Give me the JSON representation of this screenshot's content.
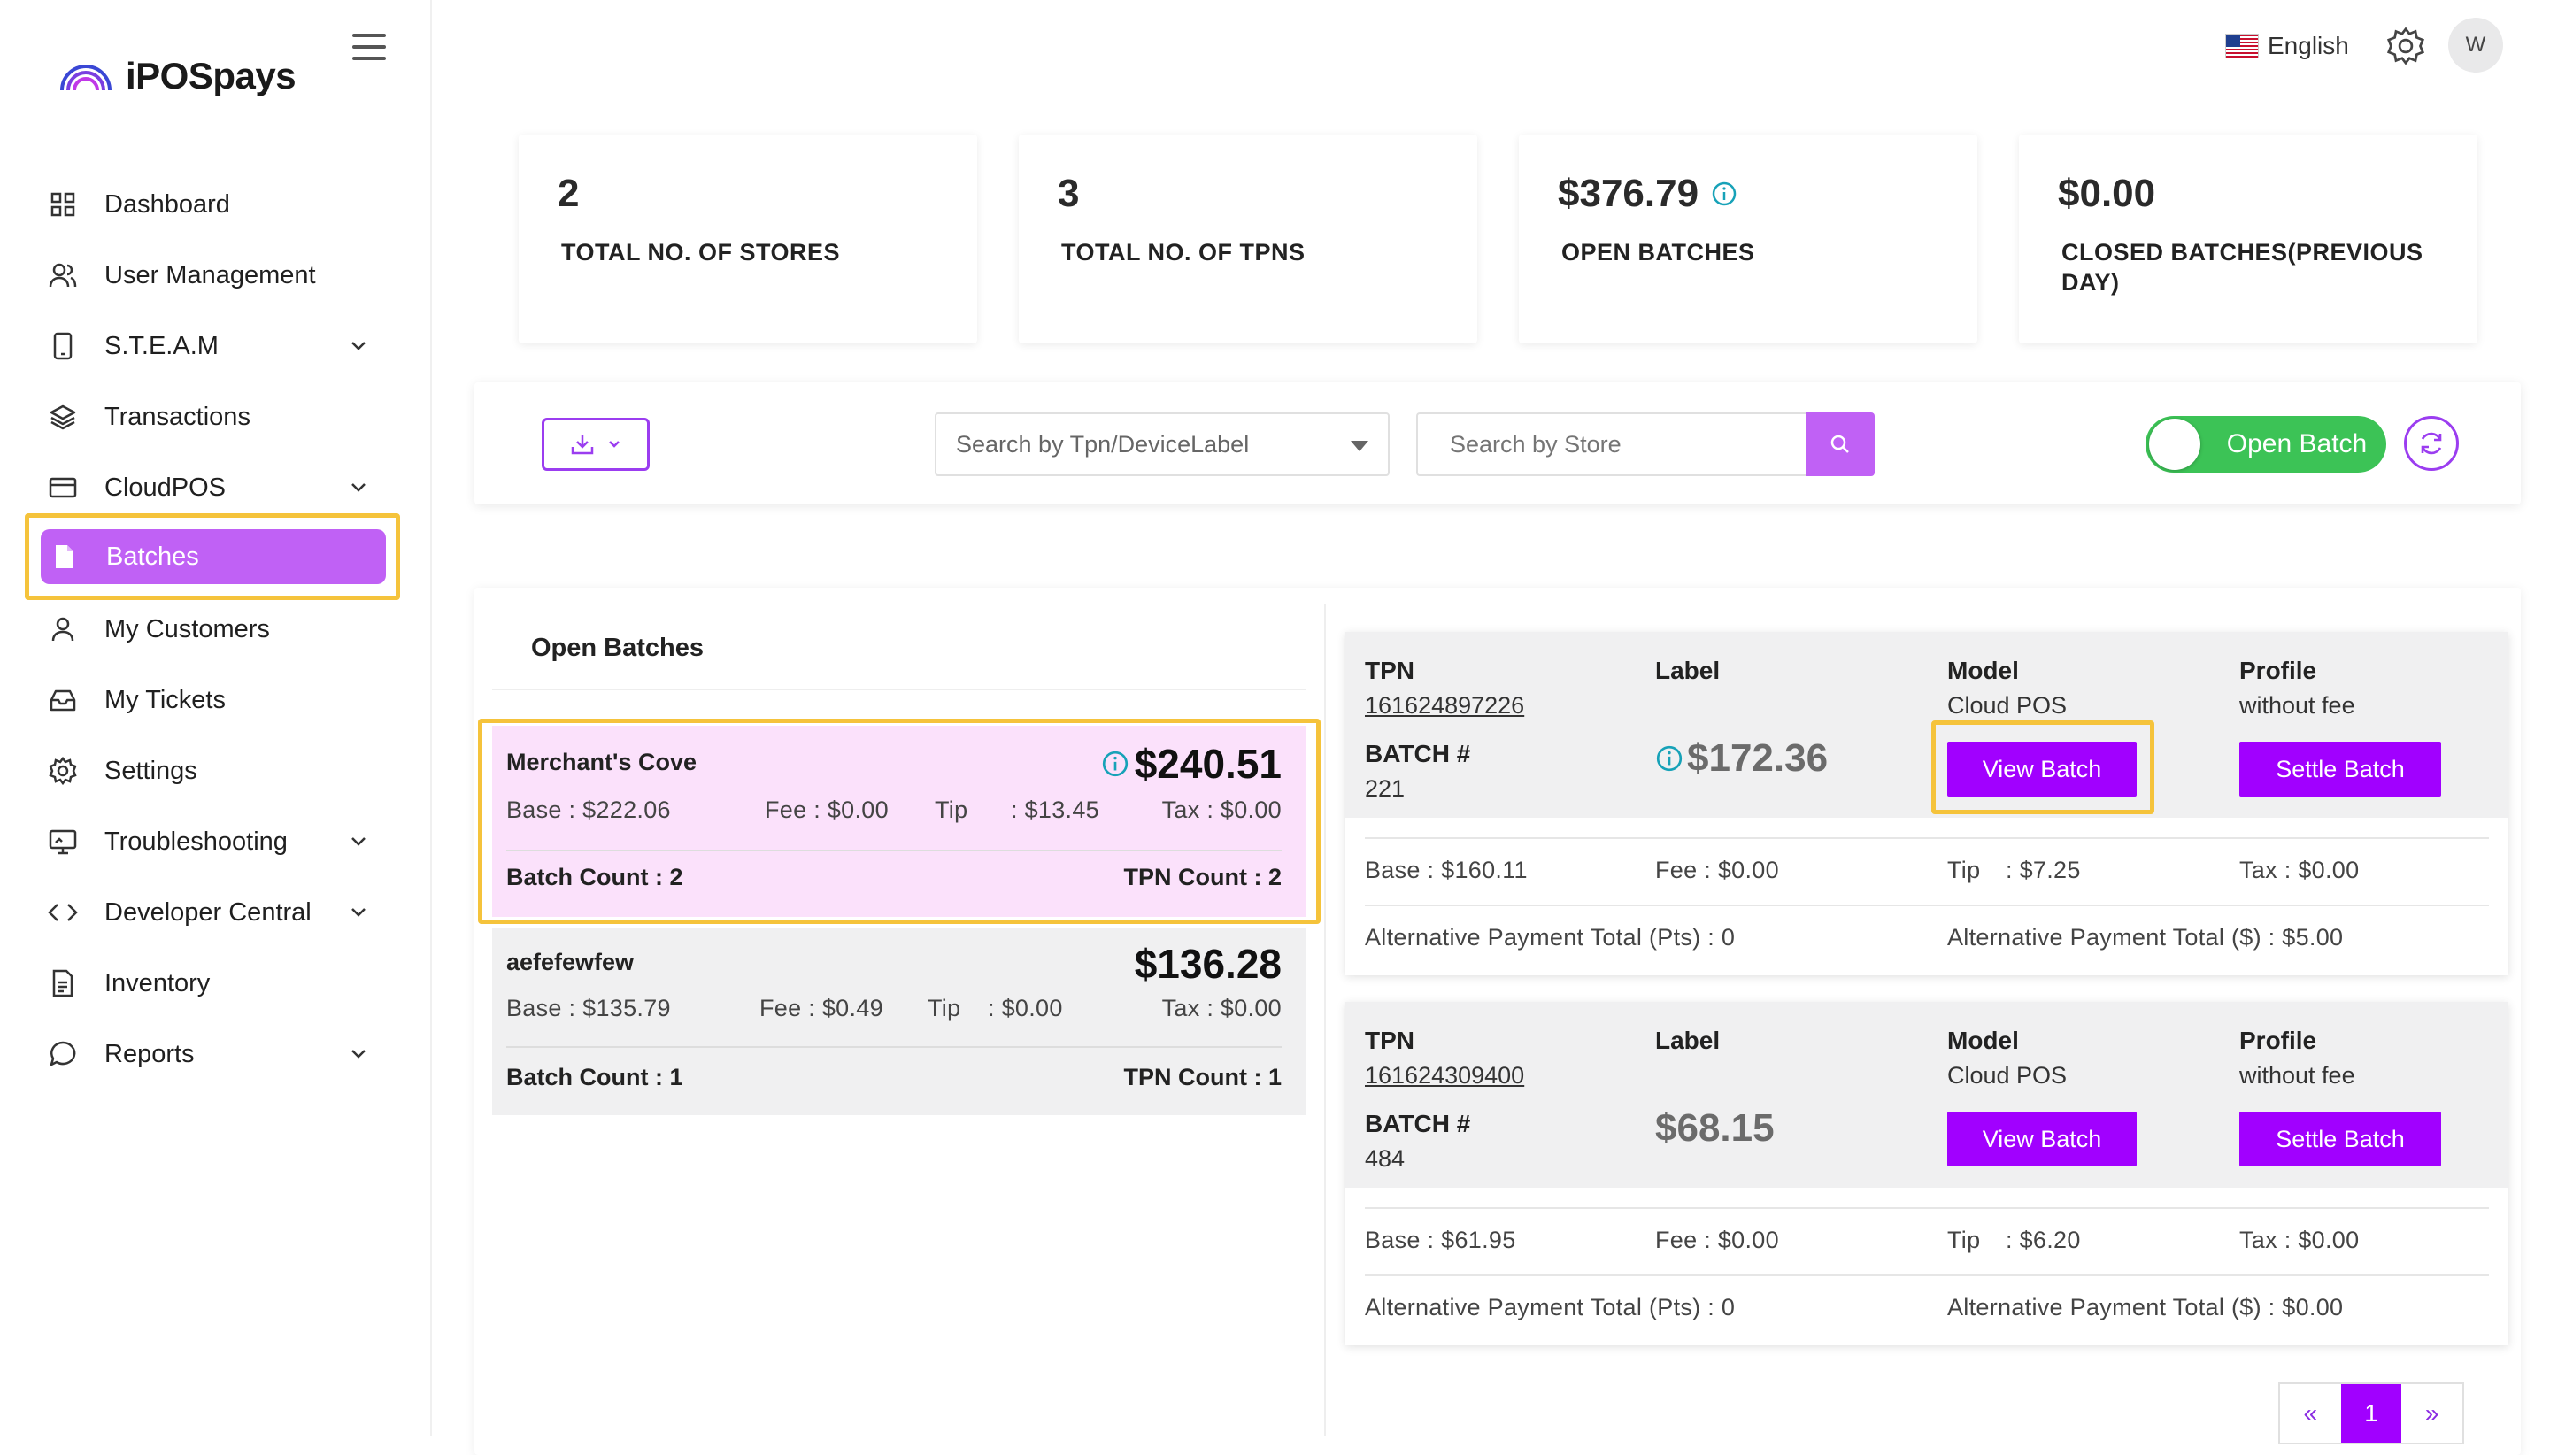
{
  "app": {
    "logo_text": "iPOSpays"
  },
  "topbar": {
    "language": "English",
    "avatar_initial": "W"
  },
  "sidebar": {
    "items": [
      {
        "label": "Dashboard",
        "icon": "grid-icon",
        "chevron": false
      },
      {
        "label": "User Management",
        "icon": "users-icon",
        "chevron": false
      },
      {
        "label": "S.T.E.A.M",
        "icon": "device-icon",
        "chevron": true
      },
      {
        "label": "Transactions",
        "icon": "layers-icon",
        "chevron": false
      },
      {
        "label": "CloudPOS",
        "icon": "card-icon",
        "chevron": true
      },
      {
        "label": "Batches",
        "icon": "file-icon",
        "chevron": false,
        "active": true
      },
      {
        "label": "My Customers",
        "icon": "user-icon",
        "chevron": false
      },
      {
        "label": "My Tickets",
        "icon": "inbox-icon",
        "chevron": false
      },
      {
        "label": "Settings",
        "icon": "gear-icon",
        "chevron": false
      },
      {
        "label": "Troubleshooting",
        "icon": "monitor-icon",
        "chevron": true
      },
      {
        "label": "Developer Central",
        "icon": "code-icon",
        "chevron": true
      },
      {
        "label": "Inventory",
        "icon": "document-icon",
        "chevron": false
      },
      {
        "label": "Reports",
        "icon": "chat-icon",
        "chevron": true
      }
    ]
  },
  "stats": [
    {
      "value": "2",
      "label": "TOTAL NO. OF STORES"
    },
    {
      "value": "3",
      "label": "TOTAL NO. OF TPNS"
    },
    {
      "value": "$376.79",
      "label": "OPEN BATCHES",
      "info": true
    },
    {
      "value": "$0.00",
      "label": "CLOSED BATCHES(PREVIOUS DAY)"
    }
  ],
  "filters": {
    "tpn_placeholder": "Search by Tpn/DeviceLabel",
    "store_placeholder": "Search by Store",
    "toggle_label": "Open Batch"
  },
  "open_batches": {
    "title": "Open Batches",
    "cards": [
      {
        "name": "Merchant's Cove",
        "total": "$240.51",
        "base": "Base : $222.06",
        "fee": "Fee : $0.00",
        "tip": "Tip",
        "tip_value": ": $13.45",
        "tax": "Tax : $0.00",
        "batch_count": "Batch Count : 2",
        "tpn_count": "TPN Count : 2"
      },
      {
        "name": "aefefewfew",
        "total": "$136.28",
        "base": "Base : $135.79",
        "fee": "Fee : $0.49",
        "tip": "Tip",
        "tip_value": ": $0.00",
        "tax": "Tax : $0.00",
        "batch_count": "Batch Count : 1",
        "tpn_count": "TPN Count : 1"
      }
    ]
  },
  "tpn_cards": [
    {
      "tpn_h": "TPN",
      "tpn": "161624897226",
      "label_h": "Label",
      "model_h": "Model",
      "model": "Cloud POS",
      "profile_h": "Profile",
      "profile": "without fee",
      "batch_h": "BATCH #",
      "batch": "221",
      "amount": "$172.36",
      "view_label": "View Batch",
      "settle_label": "Settle Batch",
      "base": "Base : $160.11",
      "fee": "Fee : $0.00",
      "tip": "Tip",
      "tip_value": ": $7.25",
      "tax": "Tax : $0.00",
      "alt_pts": "Alternative Payment Total (Pts) : 0",
      "alt_usd": "Alternative Payment Total ($) : $5.00"
    },
    {
      "tpn_h": "TPN",
      "tpn": "161624309400",
      "label_h": "Label",
      "model_h": "Model",
      "model": "Cloud POS",
      "profile_h": "Profile",
      "profile": "without fee",
      "batch_h": "BATCH #",
      "batch": "484",
      "amount": "$68.15",
      "view_label": "View Batch",
      "settle_label": "Settle Batch",
      "base": "Base : $61.95",
      "fee": "Fee : $0.00",
      "tip": "Tip",
      "tip_value": ": $6.20",
      "tax": "Tax : $0.00",
      "alt_pts": "Alternative Payment Total (Pts) : 0",
      "alt_usd": "Alternative Payment Total ($) : $0.00"
    }
  ],
  "pagination": {
    "prev": "«",
    "current": "1",
    "next": "»"
  },
  "colors": {
    "accent": "#a100ff",
    "sidebar_active": "#c061f5",
    "highlight": "#f5c33b",
    "toggle_on": "#3cc356",
    "selected_card": "#fbe1fb"
  }
}
